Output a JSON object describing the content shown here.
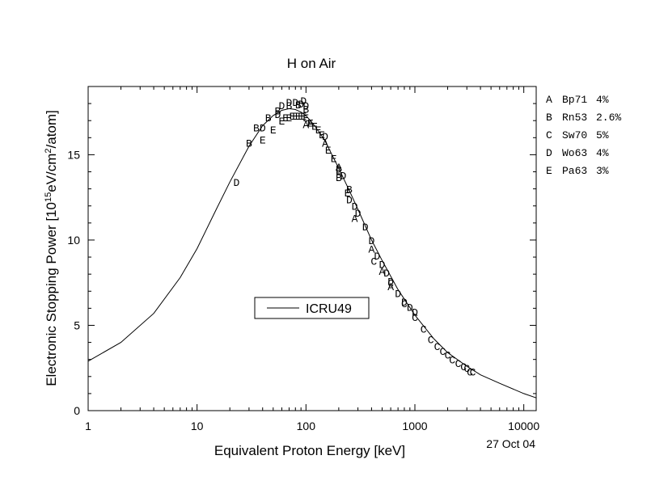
{
  "chart_data": {
    "type": "scatter",
    "title": "H on Air",
    "xlabel": "Equivalent Proton Energy [keV]",
    "ylabel_parts": [
      "Electronic Stopping Power [10",
      "15",
      "eV/cm",
      "2",
      "/atom]"
    ],
    "x_scale": "log",
    "xlim": [
      1,
      13000
    ],
    "ylim": [
      0,
      19
    ],
    "x_ticks": [
      1,
      10,
      100,
      1000,
      10000
    ],
    "x_tick_labels": [
      "1",
      "10",
      "100",
      "1000",
      "10000"
    ],
    "y_ticks": [
      0,
      5,
      10,
      15
    ],
    "y_tick_labels": [
      "0",
      "5",
      "10",
      "15"
    ],
    "date_stamp": "27 Oct 04",
    "grid": false,
    "curve_legend_label": "ICRU49",
    "curve": {
      "name": "ICRU49",
      "x": [
        1,
        2,
        4,
        7,
        10,
        15,
        20,
        30,
        40,
        50,
        60,
        70,
        80,
        90,
        100,
        120,
        150,
        200,
        250,
        300,
        400,
        500,
        700,
        1000,
        1500,
        2000,
        3000,
        4000,
        6000,
        10000,
        13000
      ],
      "y": [
        2.9,
        4.0,
        5.7,
        7.8,
        9.5,
        11.8,
        13.4,
        15.5,
        16.7,
        17.3,
        17.6,
        17.7,
        17.65,
        17.5,
        17.3,
        16.7,
        15.8,
        14.2,
        12.9,
        11.8,
        10.0,
        8.8,
        7.1,
        5.6,
        4.2,
        3.4,
        2.6,
        2.1,
        1.6,
        1.0,
        0.75
      ]
    },
    "series": [
      {
        "name": "A",
        "ref": "Bp71",
        "err": "4%",
        "x": [
          100,
          110,
          150,
          200,
          280,
          400,
          500,
          600
        ],
        "y": [
          16.8,
          16.9,
          15.7,
          14.3,
          11.3,
          9.5,
          8.2,
          7.3
        ]
      },
      {
        "name": "B",
        "ref": "Rn53",
        "err": "2.6%",
        "x": [
          30,
          35,
          45,
          55,
          70,
          85,
          100,
          200,
          250
        ],
        "y": [
          15.7,
          16.6,
          17.2,
          17.6,
          17.9,
          17.95,
          17.7,
          13.7,
          13.0
        ]
      },
      {
        "name": "C",
        "ref": "Sw70",
        "err": "5%",
        "x": [
          420,
          600,
          800,
          1000,
          1200,
          1400,
          1600,
          1800,
          2000,
          2200,
          2500,
          2800,
          3000,
          3200,
          3400
        ],
        "y": [
          8.8,
          7.5,
          6.3,
          5.5,
          4.8,
          4.2,
          3.8,
          3.5,
          3.3,
          3.0,
          2.8,
          2.6,
          2.5,
          2.3,
          2.3
        ]
      },
      {
        "name": "D",
        "ref": "Wo63",
        "err": "4%",
        "x": [
          23,
          40,
          55,
          60,
          70,
          80,
          90,
          95,
          100,
          150,
          200,
          220,
          250,
          280,
          300,
          350,
          400,
          450,
          500,
          550,
          600,
          700,
          800,
          900,
          1000
        ],
        "y": [
          13.4,
          16.6,
          17.4,
          17.9,
          18.1,
          18.1,
          18.0,
          18.2,
          17.9,
          16.1,
          14.2,
          13.8,
          12.4,
          12.0,
          11.6,
          10.8,
          10.0,
          9.1,
          8.6,
          8.1,
          7.6,
          6.9,
          6.4,
          6.1,
          5.8
        ]
      },
      {
        "name": "E",
        "ref": "Pa63",
        "err": "3%",
        "x": [
          40,
          50,
          60,
          65,
          70,
          75,
          80,
          85,
          90,
          95,
          100,
          110,
          120,
          130,
          140,
          160,
          180,
          200,
          240
        ],
        "y": [
          15.9,
          16.5,
          17.0,
          17.2,
          17.2,
          17.3,
          17.3,
          17.3,
          17.3,
          17.3,
          17.2,
          16.9,
          16.7,
          16.5,
          16.2,
          15.3,
          14.8,
          14.1,
          12.8
        ]
      }
    ]
  }
}
